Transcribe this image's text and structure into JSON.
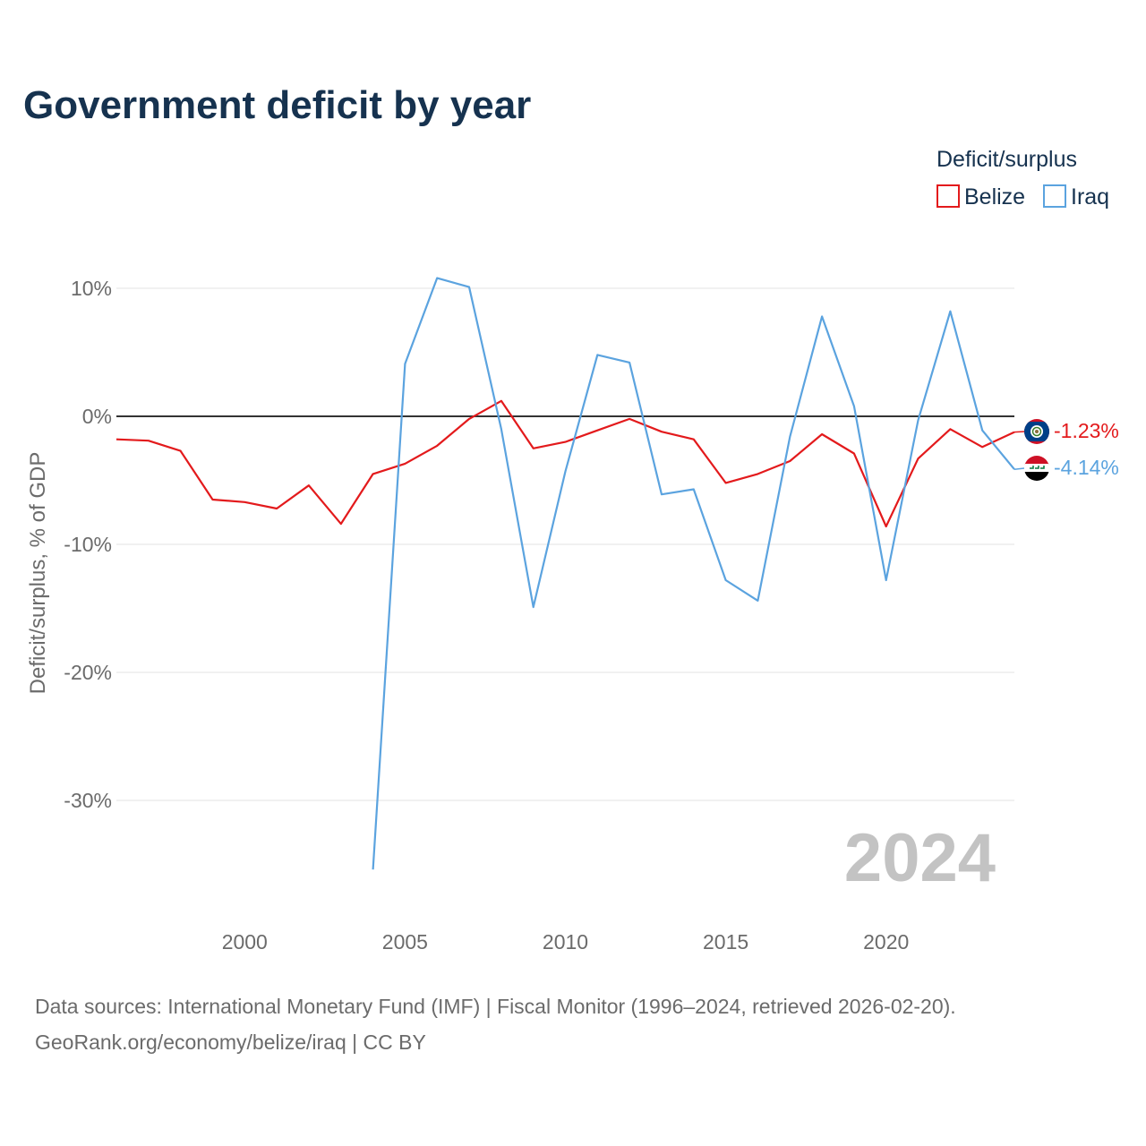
{
  "chart_data": {
    "type": "line",
    "title": "Government deficit by year",
    "ylabel": "Deficit/surplus, % of GDP",
    "xlabel": "",
    "legend_title": "Deficit/surplus",
    "legend_position": "top-right",
    "xlim": [
      1996,
      2024
    ],
    "ylim": [
      -38,
      13
    ],
    "x_ticks": [
      2000,
      2005,
      2010,
      2015,
      2020
    ],
    "x_tick_labels": [
      "2000",
      "2005",
      "2010",
      "2015",
      "2020"
    ],
    "y_ticks": [
      10,
      0,
      -10,
      -20,
      -30
    ],
    "y_tick_labels": [
      "10%",
      "0%",
      "-10%",
      "-20%",
      "-30%"
    ],
    "year_stamp": "2024",
    "series": [
      {
        "name": "Belize",
        "color": "#e31a1c",
        "end_label": "-1.23%",
        "flag": "belize-flag-icon",
        "points": [
          [
            1996,
            -1.8
          ],
          [
            1997,
            -1.9
          ],
          [
            1998,
            -2.7
          ],
          [
            1999,
            -6.5
          ],
          [
            2000,
            -6.7
          ],
          [
            2001,
            -7.2
          ],
          [
            2002,
            -5.4
          ],
          [
            2003,
            -8.4
          ],
          [
            2004,
            -4.5
          ],
          [
            2005,
            -3.7
          ],
          [
            2006,
            -2.3
          ],
          [
            2007,
            -0.2
          ],
          [
            2008,
            1.2
          ],
          [
            2009,
            -2.5
          ],
          [
            2010,
            -2.0
          ],
          [
            2011,
            -1.1
          ],
          [
            2012,
            -0.2
          ],
          [
            2013,
            -1.2
          ],
          [
            2014,
            -1.8
          ],
          [
            2015,
            -5.2
          ],
          [
            2016,
            -4.5
          ],
          [
            2017,
            -3.5
          ],
          [
            2018,
            -1.4
          ],
          [
            2019,
            -2.9
          ],
          [
            2020,
            -8.6
          ],
          [
            2021,
            -3.3
          ],
          [
            2022,
            -1.0
          ],
          [
            2023,
            -2.4
          ],
          [
            2024,
            -1.23
          ]
        ]
      },
      {
        "name": "Iraq",
        "color": "#5ba3df",
        "end_label": "-4.14%",
        "flag": "iraq-flag-icon",
        "points": [
          [
            2004,
            -35.4
          ],
          [
            2005,
            4.1
          ],
          [
            2006,
            10.8
          ],
          [
            2007,
            10.1
          ],
          [
            2008,
            -1.0
          ],
          [
            2009,
            -14.9
          ],
          [
            2010,
            -4.3
          ],
          [
            2011,
            4.8
          ],
          [
            2012,
            4.2
          ],
          [
            2013,
            -6.1
          ],
          [
            2014,
            -5.7
          ],
          [
            2015,
            -12.8
          ],
          [
            2016,
            -14.4
          ],
          [
            2017,
            -1.6
          ],
          [
            2018,
            7.8
          ],
          [
            2019,
            0.8
          ],
          [
            2020,
            -12.8
          ],
          [
            2021,
            -0.3
          ],
          [
            2022,
            8.2
          ],
          [
            2023,
            -1.1
          ],
          [
            2024,
            -4.14
          ]
        ]
      }
    ]
  },
  "source": {
    "line1": "Data sources: International Monetary Fund (IMF) | Fiscal Monitor (1996–2024, retrieved 2026-02-20).",
    "line2": "GeoRank.org/economy/belize/iraq | CC BY"
  }
}
